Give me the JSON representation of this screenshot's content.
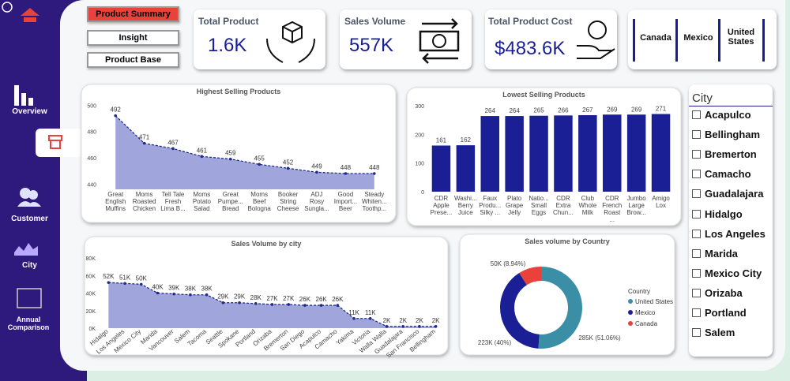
{
  "nav": {
    "items": [
      "Overview",
      "Customer",
      "City",
      "Annual Comparison"
    ]
  },
  "buttons": [
    "Product Summary",
    "Insight",
    "Product Base"
  ],
  "kpis": [
    {
      "label": "Total Product",
      "value": "1.6K"
    },
    {
      "label": "Sales Volume",
      "value": "557K"
    },
    {
      "label": "Total Product Cost",
      "value": "$483.6K"
    }
  ],
  "country_slicer": [
    "Canada",
    "Mexico",
    "United States"
  ],
  "city_slicer": {
    "title": "City",
    "items": [
      "Acapulco",
      "Bellingham",
      "Bremerton",
      "Camacho",
      "Guadalajara",
      "Hidalgo",
      "Los Angeles",
      "Marida",
      "Mexico City",
      "Orizaba",
      "Portland",
      "Salem"
    ]
  },
  "chart_data": [
    {
      "type": "area",
      "title": "Highest Selling Products",
      "color": "#1f2a8a",
      "categories": [
        "Great English Muffins",
        "Moms Roasted Chicken",
        "Tell Tale Fresh Lima B...",
        "Moms Potato Salad",
        "Great Pumpe... Bread",
        "Moms Beef Bologna",
        "Booker String Cheese",
        "ADJ Rosy Sungla...",
        "Good Import... Beer",
        "Steady Whiten... Toothp..."
      ],
      "values": [
        492,
        471,
        467,
        461,
        459,
        455,
        452,
        449,
        448,
        448
      ],
      "ylim": [
        436,
        502
      ],
      "yticks": [
        440,
        460,
        480,
        500
      ]
    },
    {
      "type": "bar",
      "title": "Lowest Selling Products",
      "color": "#1a1f96",
      "categories": [
        "CDR Apple Prese...",
        "Washi... Berry Juice",
        "Faux Produ... Silky ...",
        "Plato Grape Jelly",
        "Natio... Small Eggs",
        "CDR Extra Chun...",
        "Club Whole Milk",
        "CDR French Roast ...",
        "Jumbo Large Brow...",
        "Amigo Lox"
      ],
      "values": [
        161,
        162,
        264,
        264,
        265,
        266,
        267,
        269,
        269,
        271
      ],
      "ylim": [
        0,
        300
      ],
      "yticks": [
        0,
        100,
        200,
        300
      ]
    },
    {
      "type": "area",
      "title": "Sales Volume by city",
      "color": "#1f2a8a",
      "categories": [
        "Hidalgo",
        "Los Angeles",
        "Mexico City",
        "Marida",
        "Vancouver",
        "Salem",
        "Tacoma",
        "Seattle",
        "Spokane",
        "Portland",
        "Orizaba",
        "Bremerton",
        "San Diego",
        "Acapulco",
        "Camacho",
        "Yakima",
        "Victoria",
        "Walla Walla",
        "Guadalajara",
        "San Francisco",
        "Bellingham"
      ],
      "values": [
        52000,
        51000,
        50000,
        40000,
        39000,
        38000,
        38000,
        29000,
        29000,
        28000,
        27000,
        27000,
        26000,
        26000,
        26000,
        11000,
        11000,
        2000,
        2000,
        2000,
        2000
      ],
      "value_labels": [
        "52K",
        "51K",
        "50K",
        "40K",
        "39K",
        "38K",
        "38K",
        "29K",
        "29K",
        "28K",
        "27K",
        "27K",
        "26K",
        "26K",
        "26K",
        "11K",
        "11K",
        "2K",
        "2K",
        "2K",
        "2K"
      ],
      "ylim": [
        0,
        80000
      ],
      "yticks": [
        {
          "value": 0,
          "label": "0K"
        },
        {
          "value": 20000,
          "label": "20K"
        },
        {
          "value": 40000,
          "label": "40K"
        },
        {
          "value": 60000,
          "label": "60K"
        },
        {
          "value": 80000,
          "label": "80K"
        }
      ]
    },
    {
      "type": "donut",
      "title": "Sales volume by Country",
      "legend_title": "Country",
      "categories": [
        "United States",
        "Mexico",
        "Canada"
      ],
      "values": [
        285000,
        223000,
        50000
      ],
      "value_labels": [
        "285K (51.06%)",
        "223K (40%)",
        "50K (8.94%)"
      ],
      "colors": [
        "#3a8ea5",
        "#1a1f96",
        "#e8423a"
      ]
    }
  ]
}
